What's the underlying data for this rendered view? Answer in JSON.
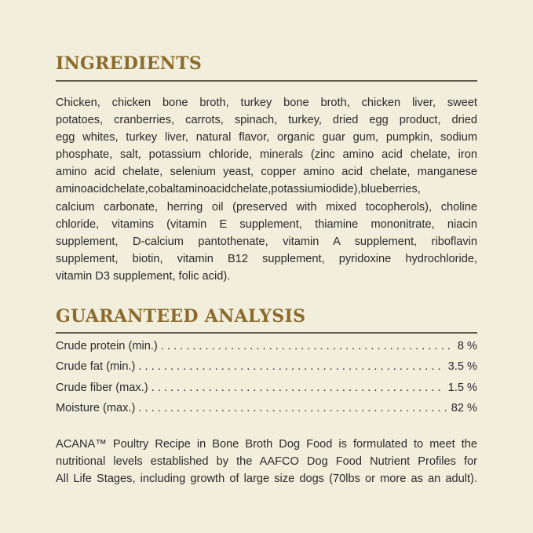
{
  "ingredients": {
    "heading": "INGREDIENTS",
    "lines": [
      "Chicken, chicken bone broth, turkey bone broth, chicken liver, sweet",
      "potatoes, cranberries, carrots, spinach, turkey, dried egg product, dried",
      "egg whites, turkey liver, natural flavor, organic guar gum, pumpkin, sodium",
      "phosphate, salt, potassium chloride, minerals (zinc amino acid chelate, iron",
      "amino acid chelate, selenium yeast, copper amino acid chelate, manganese",
      "aminoacidchelate,cobaltaminoacidchelate,potassiumiodide),blueberries,",
      "calcium carbonate, herring oil (preserved with mixed tocopherols), choline",
      "chloride, vitamins (vitamin E supplement, thiamine mononitrate, niacin",
      "supplement, D-calcium pantothenate, vitamin A supplement, riboflavin",
      "supplement, biotin, vitamin B12 supplement, pyridoxine hydrochloride,",
      "vitamin D3 supplement, folic acid)."
    ]
  },
  "analysis": {
    "heading": "GUARANTEED ANALYSIS",
    "rows": [
      {
        "label": "Crude protein (min.)",
        "value": "8 %"
      },
      {
        "label": "Crude fat (min.)",
        "value": "3.5 %"
      },
      {
        "label": "Crude fiber (max.)",
        "value": "1.5 %"
      },
      {
        "label": "Moisture (max.)",
        "value": "82 %"
      }
    ]
  },
  "footnote": {
    "lines": [
      "ACANA™ Poultry Recipe in Bone Broth Dog Food is formulated to meet the",
      "nutritional levels established by the AAFCO Dog Food Nutrient Profiles for",
      "All Life Stages, including growth of large size dogs (70lbs or more as an adult)."
    ]
  },
  "colors": {
    "background": "#f1eedc",
    "heading": "#8c6a2c",
    "rule": "#5e5a4e"
  }
}
